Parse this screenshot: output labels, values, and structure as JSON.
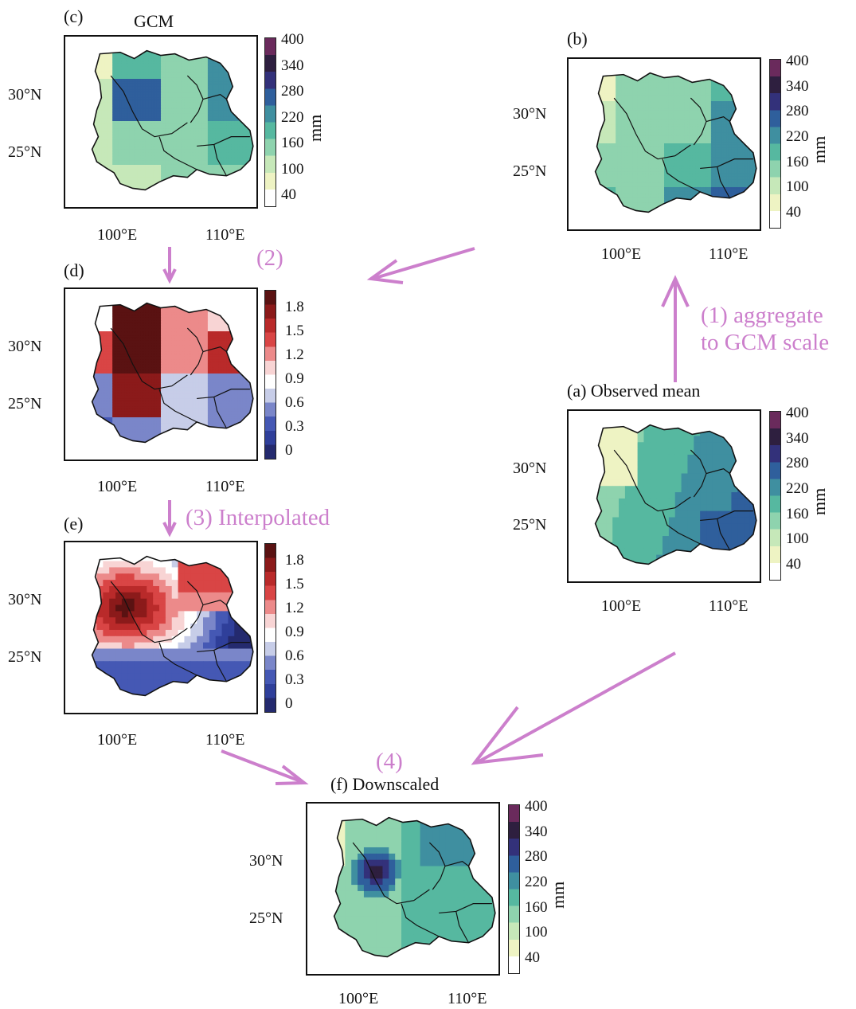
{
  "panels": {
    "c": {
      "label": "(c)",
      "title": "GCM",
      "unit": "mm"
    },
    "b": {
      "label": "(b)",
      "title": "",
      "unit": "mm"
    },
    "d": {
      "label": "(d)",
      "title": "",
      "unit": ""
    },
    "e": {
      "label": "(e)",
      "title": "",
      "unit": ""
    },
    "a": {
      "label": "(a) Observed mean",
      "title": "",
      "unit": "mm"
    },
    "f": {
      "label": "(f) Downscaled",
      "title": "",
      "unit": "mm"
    }
  },
  "axes": {
    "lat_ticks": [
      "30°N",
      "25°N"
    ],
    "lon_ticks": [
      "100°E",
      "110°E"
    ]
  },
  "colorbars": {
    "precip": {
      "ticks": [
        "400",
        "340",
        "280",
        "220",
        "160",
        "100",
        "40"
      ],
      "colors": [
        "#6a2a5c",
        "#2e1f3f",
        "#33317a",
        "#2f5f9c",
        "#3f8fa0",
        "#56b8a0",
        "#8ed3ae",
        "#c6e8b9",
        "#eef3c3",
        "#ffffff"
      ]
    },
    "ratio": {
      "ticks": [
        "1.8",
        "1.5",
        "1.2",
        "0.9",
        "0.6",
        "0.3",
        "0"
      ],
      "colors": [
        "#5a1212",
        "#8b1a1a",
        "#b92a2a",
        "#d94545",
        "#ec8a8a",
        "#f8d4d4",
        "#ffffff",
        "#c7cde8",
        "#7a86c9",
        "#4558b4",
        "#2f3f9a",
        "#242a6e"
      ]
    }
  },
  "steps": {
    "s1": "(1) aggregate",
    "s1b": "to GCM scale",
    "s2": "(2)",
    "s3": "(3) Interpolated",
    "s4": "(4)"
  },
  "colors": {
    "arrow": "#cc7fcc"
  }
}
